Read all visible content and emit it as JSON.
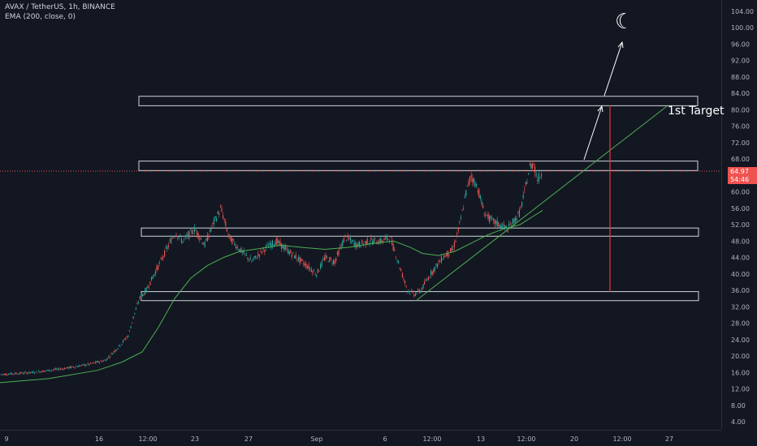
{
  "header": {
    "symbol_line": "AVAX / TetherUS, 1h, BINANCE",
    "indicator_line": "EMA (200, close, 0)"
  },
  "price_axis": {
    "ticks": [
      "104.00",
      "100.00",
      "96.00",
      "92.00",
      "88.00",
      "84.00",
      "80.00",
      "76.00",
      "72.00",
      "68.00",
      "64.00",
      "60.00",
      "56.00",
      "52.00",
      "48.00",
      "44.00",
      "40.00",
      "36.00",
      "32.00",
      "28.00",
      "24.00",
      "20.00",
      "16.00",
      "12.00",
      "8.00",
      "4.00"
    ],
    "last_price": "64.97",
    "countdown": "54:46"
  },
  "time_axis": {
    "labels": [
      "9",
      "16",
      "12:00",
      "23",
      "27",
      "Sep",
      "6",
      "12:00",
      "13",
      "12:00",
      "20",
      "12:00",
      "27"
    ]
  },
  "drawings": {
    "target_label": "1st Target",
    "moon_icon": "moon-icon",
    "zones": [
      {
        "name": "zone-84",
        "top": 83.3,
        "bottom": 81.0
      },
      {
        "name": "zone-66",
        "top": 67.5,
        "bottom": 65.2
      },
      {
        "name": "zone-50",
        "top": 51.2,
        "bottom": 49.2
      },
      {
        "name": "zone-34",
        "top": 35.7,
        "bottom": 33.5
      }
    ]
  },
  "chart_data": {
    "type": "candlestick",
    "title": "AVAX / TetherUS, 1h, BINANCE",
    "ylim": [
      0,
      106
    ],
    "series": [
      {
        "name": "AVAX / TetherUS",
        "x": [
          "9",
          "16",
          "12:00",
          "23",
          "27",
          "Sep",
          "6",
          "12:00",
          "13",
          "12:00"
        ],
        "values": [
          15.5,
          18,
          42,
          50,
          45,
          44,
          44,
          40,
          60,
          65
        ]
      },
      {
        "name": "EMA (200, close, 0)"
      }
    ]
  },
  "colors": {
    "background": "#131722",
    "up": "#26a69a",
    "down": "#ef5350",
    "ema": "#4caf50",
    "axis_text": "#b2b5be",
    "zone_stroke": "#d1d4dc",
    "price_line": "#ef5350"
  }
}
